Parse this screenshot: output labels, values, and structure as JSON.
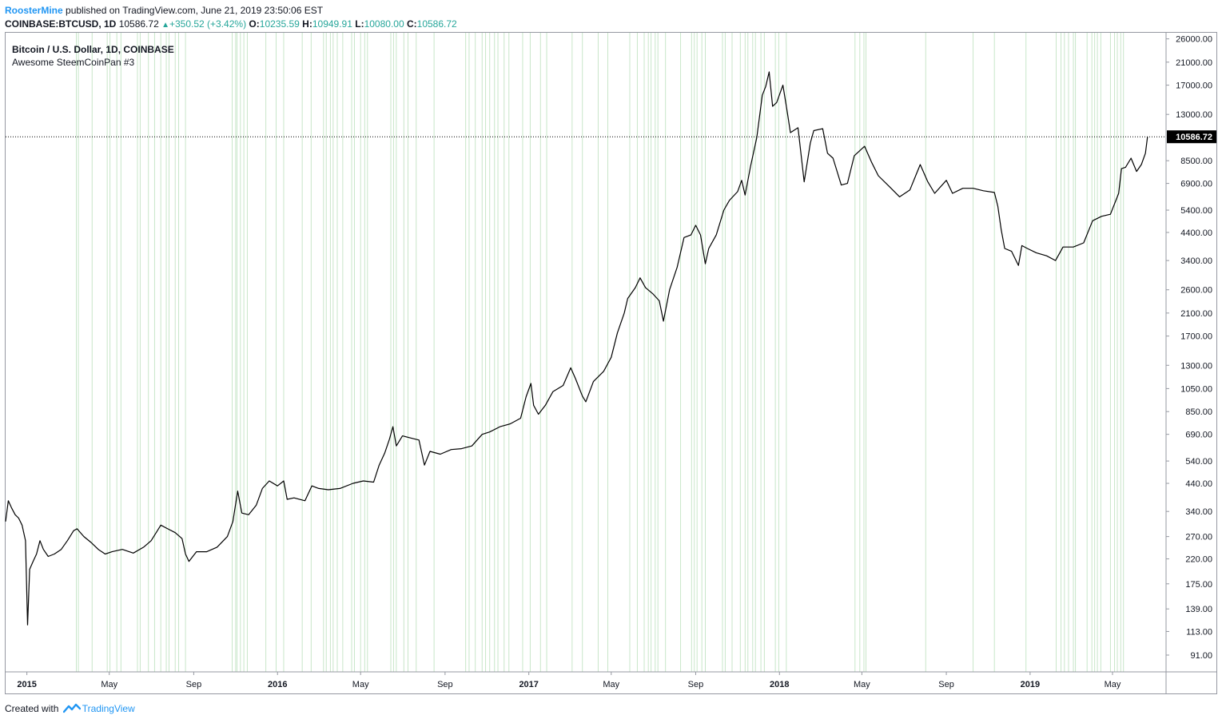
{
  "header": {
    "author": "RoosterMine",
    "published_text": "published on TradingView.com, June 21, 2019 23:50:06 EST",
    "symbol_line": "COINBASE:BTCUSD, 1D",
    "last": "10586.72",
    "change": "+350.52 (+3.42%)",
    "open_label": "O:",
    "open": "10235.59",
    "high_label": "H:",
    "high": "10949.91",
    "low_label": "L:",
    "low": "10080.00",
    "close_label": "C:",
    "close": "10586.72"
  },
  "legend": {
    "title": "Bitcoin / U.S. Dollar, 1D, COINBASE",
    "indicator": "Awesome SteemCoinPan #3"
  },
  "footer": {
    "created_with": "Created with",
    "brand": "TradingView"
  },
  "colors": {
    "line": "#000000",
    "highlight": "#c8e6c9",
    "axis_text": "#131722",
    "price_tag_bg": "#000000"
  },
  "chart_data": {
    "type": "line",
    "scale": "log",
    "y_ticks": [
      26000,
      21000,
      17000,
      13000,
      10586.72,
      8500,
      6900,
      5400,
      4400,
      3400,
      2600,
      2100,
      1700,
      1300,
      1050,
      850,
      690,
      540,
      440,
      340,
      270,
      220,
      175,
      139,
      113,
      91
    ],
    "y_tick_labels": [
      "26000.00",
      "21000.00",
      "17000.00",
      "13000.00",
      "10586.72",
      "8500.00",
      "6900.00",
      "5400.00",
      "4400.00",
      "3400.00",
      "2600.00",
      "2100.00",
      "1700.00",
      "1300.00",
      "1050.00",
      "850.00",
      "690.00",
      "540.00",
      "440.00",
      "340.00",
      "270.00",
      "220.00",
      "175.00",
      "139.00",
      "113.00",
      "91.00"
    ],
    "ylim": [
      78,
      27500
    ],
    "x_ticks": [
      "2015",
      "May",
      "Sep",
      "2016",
      "May",
      "Sep",
      "2017",
      "May",
      "Sep",
      "2018",
      "May",
      "Sep",
      "2019",
      "May"
    ],
    "x_tick_dates": [
      "2015-01-01",
      "2015-05-01",
      "2015-09-01",
      "2016-01-01",
      "2016-05-01",
      "2016-09-01",
      "2017-01-01",
      "2017-05-01",
      "2017-09-01",
      "2018-01-01",
      "2018-05-01",
      "2018-09-01",
      "2019-01-01",
      "2019-05-01"
    ],
    "xlim": [
      "2014-12-01",
      "2019-07-18"
    ],
    "last_price": 10586.72,
    "series": [
      {
        "values": [
          [
            "2014-12-01",
            310
          ],
          [
            "2014-12-05",
            375
          ],
          [
            "2014-12-10",
            350
          ],
          [
            "2014-12-15",
            330
          ],
          [
            "2014-12-20",
            320
          ],
          [
            "2014-12-25",
            300
          ],
          [
            "2014-12-30",
            260
          ],
          [
            "2015-01-02",
            120
          ],
          [
            "2015-01-05",
            200
          ],
          [
            "2015-01-10",
            215
          ],
          [
            "2015-01-15",
            230
          ],
          [
            "2015-01-20",
            260
          ],
          [
            "2015-01-25",
            240
          ],
          [
            "2015-02-01",
            225
          ],
          [
            "2015-02-10",
            230
          ],
          [
            "2015-02-20",
            240
          ],
          [
            "2015-03-01",
            260
          ],
          [
            "2015-03-10",
            285
          ],
          [
            "2015-03-15",
            290
          ],
          [
            "2015-03-25",
            270
          ],
          [
            "2015-04-05",
            255
          ],
          [
            "2015-04-15",
            240
          ],
          [
            "2015-04-25",
            230
          ],
          [
            "2015-05-05",
            235
          ],
          [
            "2015-05-20",
            240
          ],
          [
            "2015-06-05",
            232
          ],
          [
            "2015-06-20",
            245
          ],
          [
            "2015-07-01",
            260
          ],
          [
            "2015-07-10",
            285
          ],
          [
            "2015-07-15",
            300
          ],
          [
            "2015-07-25",
            290
          ],
          [
            "2015-08-05",
            280
          ],
          [
            "2015-08-15",
            265
          ],
          [
            "2015-08-20",
            230
          ],
          [
            "2015-08-25",
            215
          ],
          [
            "2015-09-05",
            235
          ],
          [
            "2015-09-20",
            235
          ],
          [
            "2015-10-05",
            245
          ],
          [
            "2015-10-20",
            270
          ],
          [
            "2015-10-28",
            310
          ],
          [
            "2015-11-04",
            410
          ],
          [
            "2015-11-10",
            335
          ],
          [
            "2015-11-20",
            330
          ],
          [
            "2015-12-01",
            360
          ],
          [
            "2015-12-10",
            420
          ],
          [
            "2015-12-20",
            450
          ],
          [
            "2016-01-01",
            430
          ],
          [
            "2016-01-10",
            450
          ],
          [
            "2016-01-15",
            380
          ],
          [
            "2016-01-25",
            385
          ],
          [
            "2016-02-10",
            375
          ],
          [
            "2016-02-20",
            430
          ],
          [
            "2016-03-01",
            420
          ],
          [
            "2016-03-15",
            415
          ],
          [
            "2016-04-01",
            420
          ],
          [
            "2016-04-20",
            440
          ],
          [
            "2016-05-05",
            450
          ],
          [
            "2016-05-20",
            445
          ],
          [
            "2016-05-28",
            520
          ],
          [
            "2016-06-05",
            580
          ],
          [
            "2016-06-12",
            660
          ],
          [
            "2016-06-17",
            740
          ],
          [
            "2016-06-22",
            620
          ],
          [
            "2016-07-01",
            680
          ],
          [
            "2016-07-15",
            665
          ],
          [
            "2016-07-25",
            655
          ],
          [
            "2016-08-02",
            520
          ],
          [
            "2016-08-10",
            590
          ],
          [
            "2016-08-25",
            575
          ],
          [
            "2016-09-10",
            600
          ],
          [
            "2016-09-25",
            605
          ],
          [
            "2016-10-10",
            620
          ],
          [
            "2016-10-25",
            690
          ],
          [
            "2016-11-05",
            705
          ],
          [
            "2016-11-20",
            740
          ],
          [
            "2016-12-05",
            760
          ],
          [
            "2016-12-20",
            800
          ],
          [
            "2016-12-28",
            975
          ],
          [
            "2017-01-04",
            1100
          ],
          [
            "2017-01-08",
            900
          ],
          [
            "2017-01-15",
            830
          ],
          [
            "2017-01-25",
            900
          ],
          [
            "2017-02-05",
            1020
          ],
          [
            "2017-02-20",
            1080
          ],
          [
            "2017-03-03",
            1270
          ],
          [
            "2017-03-10",
            1150
          ],
          [
            "2017-03-20",
            980
          ],
          [
            "2017-03-25",
            930
          ],
          [
            "2017-04-05",
            1120
          ],
          [
            "2017-04-20",
            1230
          ],
          [
            "2017-05-01",
            1400
          ],
          [
            "2017-05-10",
            1750
          ],
          [
            "2017-05-20",
            2100
          ],
          [
            "2017-05-25",
            2400
          ],
          [
            "2017-06-05",
            2650
          ],
          [
            "2017-06-12",
            2900
          ],
          [
            "2017-06-20",
            2650
          ],
          [
            "2017-07-01",
            2500
          ],
          [
            "2017-07-10",
            2350
          ],
          [
            "2017-07-16",
            1950
          ],
          [
            "2017-07-25",
            2600
          ],
          [
            "2017-08-05",
            3200
          ],
          [
            "2017-08-15",
            4200
          ],
          [
            "2017-08-25",
            4300
          ],
          [
            "2017-09-01",
            4700
          ],
          [
            "2017-09-08",
            4300
          ],
          [
            "2017-09-15",
            3300
          ],
          [
            "2017-09-20",
            3800
          ],
          [
            "2017-10-01",
            4300
          ],
          [
            "2017-10-12",
            5400
          ],
          [
            "2017-10-20",
            5900
          ],
          [
            "2017-11-01",
            6400
          ],
          [
            "2017-11-07",
            7100
          ],
          [
            "2017-11-12",
            6200
          ],
          [
            "2017-11-20",
            8100
          ],
          [
            "2017-11-29",
            10500
          ],
          [
            "2017-12-07",
            15500
          ],
          [
            "2017-12-12",
            16800
          ],
          [
            "2017-12-17",
            19200
          ],
          [
            "2017-12-22",
            14000
          ],
          [
            "2017-12-28",
            14500
          ],
          [
            "2018-01-06",
            17000
          ],
          [
            "2018-01-12",
            13500
          ],
          [
            "2018-01-17",
            11000
          ],
          [
            "2018-01-28",
            11500
          ],
          [
            "2018-02-06",
            7000
          ],
          [
            "2018-02-15",
            10000
          ],
          [
            "2018-02-20",
            11200
          ],
          [
            "2018-03-05",
            11400
          ],
          [
            "2018-03-12",
            9100
          ],
          [
            "2018-03-20",
            8700
          ],
          [
            "2018-04-01",
            6800
          ],
          [
            "2018-04-10",
            6900
          ],
          [
            "2018-04-20",
            8900
          ],
          [
            "2018-05-05",
            9700
          ],
          [
            "2018-05-15",
            8400
          ],
          [
            "2018-05-25",
            7400
          ],
          [
            "2018-06-10",
            6700
          ],
          [
            "2018-06-25",
            6100
          ],
          [
            "2018-07-10",
            6500
          ],
          [
            "2018-07-25",
            8200
          ],
          [
            "2018-08-05",
            7000
          ],
          [
            "2018-08-15",
            6300
          ],
          [
            "2018-09-01",
            7100
          ],
          [
            "2018-09-10",
            6300
          ],
          [
            "2018-09-25",
            6600
          ],
          [
            "2018-10-10",
            6600
          ],
          [
            "2018-10-25",
            6450
          ],
          [
            "2018-11-10",
            6350
          ],
          [
            "2018-11-15",
            5600
          ],
          [
            "2018-11-20",
            4500
          ],
          [
            "2018-11-25",
            3800
          ],
          [
            "2018-12-05",
            3700
          ],
          [
            "2018-12-15",
            3250
          ],
          [
            "2018-12-20",
            3900
          ],
          [
            "2018-12-28",
            3800
          ],
          [
            "2019-01-10",
            3650
          ],
          [
            "2019-01-25",
            3550
          ],
          [
            "2019-02-07",
            3400
          ],
          [
            "2019-02-18",
            3850
          ],
          [
            "2019-03-05",
            3850
          ],
          [
            "2019-03-20",
            4000
          ],
          [
            "2019-04-02",
            4900
          ],
          [
            "2019-04-15",
            5100
          ],
          [
            "2019-04-28",
            5200
          ],
          [
            "2019-05-10",
            6300
          ],
          [
            "2019-05-14",
            7900
          ],
          [
            "2019-05-20",
            8000
          ],
          [
            "2019-05-28",
            8700
          ],
          [
            "2019-06-05",
            7700
          ],
          [
            "2019-06-12",
            8200
          ],
          [
            "2019-06-18",
            9100
          ],
          [
            "2019-06-21",
            10586.72
          ]
        ]
      }
    ],
    "highlights": [
      "2015-03-14",
      "2015-03-17",
      "2015-04-06",
      "2015-04-28",
      "2015-05-02",
      "2015-05-12",
      "2015-05-18",
      "2015-06-11",
      "2015-06-15",
      "2015-06-27",
      "2015-07-06",
      "2015-07-15",
      "2015-07-23",
      "2015-07-27",
      "2015-08-05",
      "2015-08-10",
      "2015-08-20",
      "2015-10-27",
      "2015-11-01",
      "2015-11-03",
      "2015-11-08",
      "2015-11-13",
      "2015-11-18",
      "2015-12-15",
      "2015-12-30",
      "2016-01-10",
      "2016-02-06",
      "2016-02-19",
      "2016-03-08",
      "2016-03-12",
      "2016-03-18",
      "2016-03-22",
      "2016-03-28",
      "2016-04-05",
      "2016-04-18",
      "2016-04-22",
      "2016-05-01",
      "2016-05-07",
      "2016-05-11",
      "2016-06-14",
      "2016-06-18",
      "2016-06-22",
      "2016-07-03",
      "2016-07-09",
      "2016-07-21",
      "2016-08-16",
      "2016-10-01",
      "2016-10-06",
      "2016-10-15",
      "2016-10-25",
      "2016-10-30",
      "2016-11-05",
      "2016-11-12",
      "2016-11-17",
      "2016-11-26",
      "2016-12-03",
      "2016-12-23",
      "2017-01-03",
      "2017-01-18",
      "2017-01-27",
      "2017-03-05",
      "2017-03-20",
      "2017-04-12",
      "2017-04-26",
      "2017-05-28",
      "2017-06-08",
      "2017-06-18",
      "2017-06-24",
      "2017-06-28",
      "2017-07-04",
      "2017-07-08",
      "2017-07-19",
      "2017-08-10",
      "2017-08-26",
      "2017-08-30",
      "2017-09-03",
      "2017-09-10",
      "2017-09-15",
      "2017-10-10",
      "2017-10-14",
      "2017-10-24",
      "2017-11-05",
      "2017-11-12",
      "2017-11-16",
      "2017-11-23",
      "2017-11-27",
      "2017-12-05",
      "2017-12-10",
      "2017-12-26",
      "2017-12-31",
      "2018-01-11",
      "2018-04-21",
      "2018-04-28",
      "2018-05-04",
      "2018-05-07",
      "2018-08-02",
      "2018-10-10",
      "2018-11-10",
      "2018-12-26",
      "2019-02-08",
      "2019-02-15",
      "2019-02-20",
      "2019-02-26",
      "2019-03-05",
      "2019-03-08",
      "2019-03-25",
      "2019-04-01",
      "2019-04-05",
      "2019-04-09",
      "2019-04-14",
      "2019-04-28",
      "2019-05-04",
      "2019-05-08",
      "2019-05-13",
      "2019-05-17"
    ]
  }
}
